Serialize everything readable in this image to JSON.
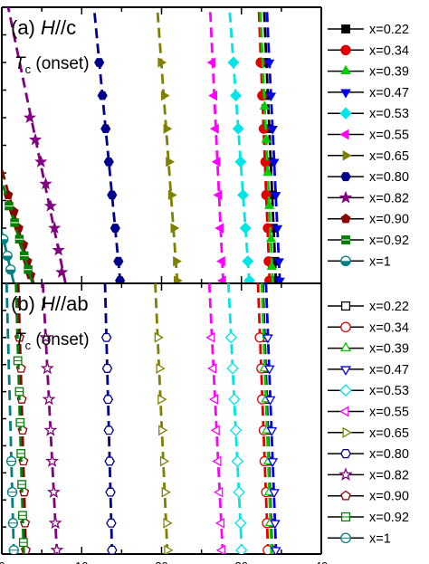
{
  "chart_data": [
    {
      "type": "scatter",
      "panel": "(a)",
      "title_prefix": "(a) ",
      "title_italic": "H",
      "title_suffix": "//c",
      "annotation_italic": "T",
      "annotation_sub": "c",
      "annotation_suffix": " (onset)",
      "fill": "filled",
      "series": [
        {
          "name": "x=0.22",
          "color": "#000000",
          "marker": "square",
          "points": [
            [
              33.1,
              4.0
            ],
            [
              33.3,
              3.4
            ],
            [
              33.5,
              2.8
            ],
            [
              33.7,
              2.2
            ],
            [
              33.9,
              1.6
            ],
            [
              34.0,
              1.0
            ],
            [
              34.2,
              0.4
            ],
            [
              34.3,
              0.05
            ]
          ]
        },
        {
          "name": "x=0.34",
          "color": "#e00000",
          "marker": "circle",
          "points": [
            [
              32.4,
              4.0
            ],
            [
              32.6,
              3.4
            ],
            [
              32.8,
              2.8
            ],
            [
              33.0,
              2.2
            ],
            [
              33.1,
              1.6
            ],
            [
              33.3,
              1.0
            ],
            [
              33.4,
              0.4
            ],
            [
              33.5,
              0.05
            ]
          ]
        },
        {
          "name": "x=0.39",
          "color": "#00cc00",
          "marker": "triangle-up",
          "points": [
            [
              32.9,
              3.2
            ],
            [
              33.1,
              2.6
            ],
            [
              33.3,
              2.0
            ],
            [
              33.5,
              1.4
            ],
            [
              33.7,
              0.8
            ],
            [
              33.8,
              0.3
            ]
          ]
        },
        {
          "name": "x=0.47",
          "color": "#0000ee",
          "marker": "triangle-down",
          "points": [
            [
              33.5,
              4.0
            ],
            [
              33.7,
              3.4
            ],
            [
              33.9,
              2.8
            ],
            [
              34.1,
              2.2
            ],
            [
              34.3,
              1.6
            ],
            [
              34.5,
              1.0
            ],
            [
              34.7,
              0.4
            ],
            [
              34.8,
              0.05
            ]
          ]
        },
        {
          "name": "x=0.53",
          "color": "#00e5e5",
          "marker": "diamond",
          "points": [
            [
              29.0,
              4.0
            ],
            [
              29.3,
              3.4
            ],
            [
              29.6,
              2.8
            ],
            [
              29.9,
              2.2
            ],
            [
              30.2,
              1.6
            ],
            [
              30.5,
              1.0
            ],
            [
              30.8,
              0.4
            ],
            [
              31.0,
              0.05
            ]
          ]
        },
        {
          "name": "x=0.55",
          "color": "#ff00ff",
          "marker": "triangle-left",
          "points": [
            [
              26.4,
              4.0
            ],
            [
              26.6,
              3.4
            ],
            [
              26.8,
              2.8
            ],
            [
              27.0,
              2.2
            ],
            [
              27.2,
              1.6
            ],
            [
              27.4,
              1.0
            ],
            [
              27.6,
              0.4
            ],
            [
              27.7,
              0.05
            ]
          ]
        },
        {
          "name": "x=0.65",
          "color": "#808000",
          "marker": "triangle-right",
          "points": [
            [
              19.9,
              4.0
            ],
            [
              20.3,
              3.4
            ],
            [
              20.6,
              2.8
            ],
            [
              20.9,
              2.2
            ],
            [
              21.2,
              1.6
            ],
            [
              21.5,
              1.0
            ],
            [
              21.8,
              0.4
            ],
            [
              21.9,
              0.05
            ]
          ]
        },
        {
          "name": "x=0.80",
          "color": "#00008b",
          "marker": "hexagon",
          "points": [
            [
              12.2,
              4.0
            ],
            [
              12.6,
              3.4
            ],
            [
              13.0,
              2.8
            ],
            [
              13.4,
              2.2
            ],
            [
              13.8,
              1.6
            ],
            [
              14.2,
              1.0
            ],
            [
              14.6,
              0.4
            ],
            [
              14.8,
              0.05
            ]
          ]
        },
        {
          "name": "x=0.82",
          "color": "#800080",
          "marker": "star",
          "points": [
            [
              3.5,
              3.0
            ],
            [
              4.2,
              2.6
            ],
            [
              4.9,
              2.2
            ],
            [
              5.5,
              1.8
            ],
            [
              6.1,
              1.4
            ],
            [
              6.6,
              1.0
            ],
            [
              7.1,
              0.6
            ],
            [
              7.5,
              0.2
            ]
          ]
        },
        {
          "name": "x=0.90",
          "color": "#8b0000",
          "marker": "pentagon",
          "points": [
            [
              0.8,
              1.6
            ],
            [
              1.5,
              1.3
            ],
            [
              2.1,
              1.0
            ],
            [
              2.7,
              0.7
            ],
            [
              3.2,
              0.4
            ],
            [
              3.6,
              0.15
            ]
          ]
        },
        {
          "name": "x=0.92",
          "color": "#008000",
          "marker": "square-cross",
          "points": [
            [
              0.9,
              1.4
            ],
            [
              1.6,
              1.1
            ],
            [
              2.2,
              0.8
            ],
            [
              2.8,
              0.5
            ],
            [
              3.3,
              0.25
            ]
          ]
        },
        {
          "name": "x=1",
          "color": "#008080",
          "marker": "circle-half",
          "points": [
            [
              0.2,
              0.8
            ],
            [
              0.7,
              0.5
            ],
            [
              1.1,
              0.25
            ]
          ]
        }
      ],
      "xlim": [
        0,
        40
      ],
      "ylim": [
        0,
        5
      ]
    },
    {
      "type": "scatter",
      "panel": "(b)",
      "title_prefix": "(b) ",
      "title_italic": "H",
      "title_suffix": "//ab",
      "annotation_italic": "T",
      "annotation_sub": "c",
      "annotation_suffix": " (onset)",
      "fill": "open",
      "series": [
        {
          "name": "x=0.22",
          "color": "#000000",
          "marker": "square",
          "points": [
            [
              32.9,
              2.8
            ],
            [
              33.0,
              2.4
            ],
            [
              33.2,
              2.0
            ],
            [
              33.3,
              1.6
            ],
            [
              33.5,
              1.2
            ],
            [
              33.6,
              0.8
            ],
            [
              33.7,
              0.4
            ],
            [
              33.8,
              0.05
            ]
          ]
        },
        {
          "name": "x=0.34",
          "color": "#e00000",
          "marker": "circle",
          "points": [
            [
              32.3,
              2.8
            ],
            [
              32.5,
              2.4
            ],
            [
              32.6,
              2.0
            ],
            [
              32.8,
              1.6
            ],
            [
              32.9,
              1.2
            ],
            [
              33.1,
              0.8
            ],
            [
              33.2,
              0.4
            ],
            [
              33.3,
              0.05
            ]
          ]
        },
        {
          "name": "x=0.39",
          "color": "#00cc00",
          "marker": "triangle-up",
          "points": [
            [
              32.9,
              2.4
            ],
            [
              33.1,
              2.0
            ],
            [
              33.2,
              1.6
            ],
            [
              33.4,
              1.2
            ],
            [
              33.5,
              0.8
            ],
            [
              33.6,
              0.4
            ]
          ]
        },
        {
          "name": "x=0.47",
          "color": "#0000ee",
          "marker": "triangle-down",
          "points": [
            [
              33.3,
              2.8
            ],
            [
              33.5,
              2.4
            ],
            [
              33.6,
              2.0
            ],
            [
              33.8,
              1.6
            ],
            [
              33.9,
              1.2
            ],
            [
              34.1,
              0.8
            ],
            [
              34.2,
              0.4
            ],
            [
              34.3,
              0.05
            ]
          ]
        },
        {
          "name": "x=0.53",
          "color": "#00e5e5",
          "marker": "diamond",
          "points": [
            [
              28.7,
              2.8
            ],
            [
              28.9,
              2.4
            ],
            [
              29.1,
              2.0
            ],
            [
              29.3,
              1.6
            ],
            [
              29.5,
              1.2
            ],
            [
              29.7,
              0.8
            ],
            [
              29.9,
              0.4
            ],
            [
              30.0,
              0.05
            ]
          ]
        },
        {
          "name": "x=0.55",
          "color": "#ff00ff",
          "marker": "triangle-left",
          "points": [
            [
              26.3,
              2.8
            ],
            [
              26.5,
              2.4
            ],
            [
              26.7,
              2.0
            ],
            [
              26.9,
              1.6
            ],
            [
              27.1,
              1.2
            ],
            [
              27.3,
              0.8
            ],
            [
              27.5,
              0.4
            ],
            [
              27.6,
              0.05
            ]
          ]
        },
        {
          "name": "x=0.65",
          "color": "#808000",
          "marker": "triangle-right",
          "points": [
            [
              19.5,
              2.8
            ],
            [
              19.7,
              2.4
            ],
            [
              19.9,
              2.0
            ],
            [
              20.0,
              1.6
            ],
            [
              20.2,
              1.2
            ],
            [
              20.4,
              0.8
            ],
            [
              20.6,
              0.4
            ],
            [
              20.7,
              0.05
            ]
          ]
        },
        {
          "name": "x=0.80",
          "color": "#00008b",
          "marker": "hexagon",
          "points": [
            [
              13.1,
              2.8
            ],
            [
              13.2,
              2.4
            ],
            [
              13.3,
              2.0
            ],
            [
              13.4,
              1.6
            ],
            [
              13.5,
              1.2
            ],
            [
              13.6,
              0.8
            ],
            [
              13.7,
              0.4
            ],
            [
              13.8,
              0.05
            ]
          ]
        },
        {
          "name": "x=0.82",
          "color": "#800080",
          "marker": "star",
          "points": [
            [
              5.5,
              2.8
            ],
            [
              5.7,
              2.4
            ],
            [
              5.9,
              2.0
            ],
            [
              6.1,
              1.6
            ],
            [
              6.3,
              1.2
            ],
            [
              6.5,
              0.8
            ],
            [
              6.7,
              0.4
            ],
            [
              6.9,
              0.05
            ]
          ]
        },
        {
          "name": "x=0.90",
          "color": "#8b0000",
          "marker": "pentagon",
          "points": [
            [
              2.2,
              2.8
            ],
            [
              2.4,
              2.4
            ],
            [
              2.5,
              2.0
            ],
            [
              2.6,
              1.6
            ],
            [
              2.7,
              1.2
            ],
            [
              2.8,
              0.8
            ],
            [
              2.9,
              0.4
            ],
            [
              3.0,
              0.05
            ]
          ]
        },
        {
          "name": "x=0.92",
          "color": "#008000",
          "marker": "square-cross",
          "points": [
            [
              2.0,
              2.5
            ],
            [
              2.2,
              2.1
            ],
            [
              2.3,
              1.7
            ],
            [
              2.4,
              1.3
            ],
            [
              2.5,
              0.9
            ],
            [
              2.6,
              0.5
            ],
            [
              2.7,
              0.15
            ]
          ]
        },
        {
          "name": "x=1",
          "color": "#008080",
          "marker": "circle-half",
          "points": [
            [
              1.2,
              1.2
            ],
            [
              1.3,
              0.8
            ],
            [
              1.4,
              0.4
            ],
            [
              1.5,
              0.05
            ]
          ]
        }
      ],
      "xlim": [
        0,
        40
      ],
      "ylim": [
        0,
        3.5
      ]
    }
  ],
  "x_tick_labels": [
    "0",
    "10",
    "20",
    "30",
    "40"
  ]
}
